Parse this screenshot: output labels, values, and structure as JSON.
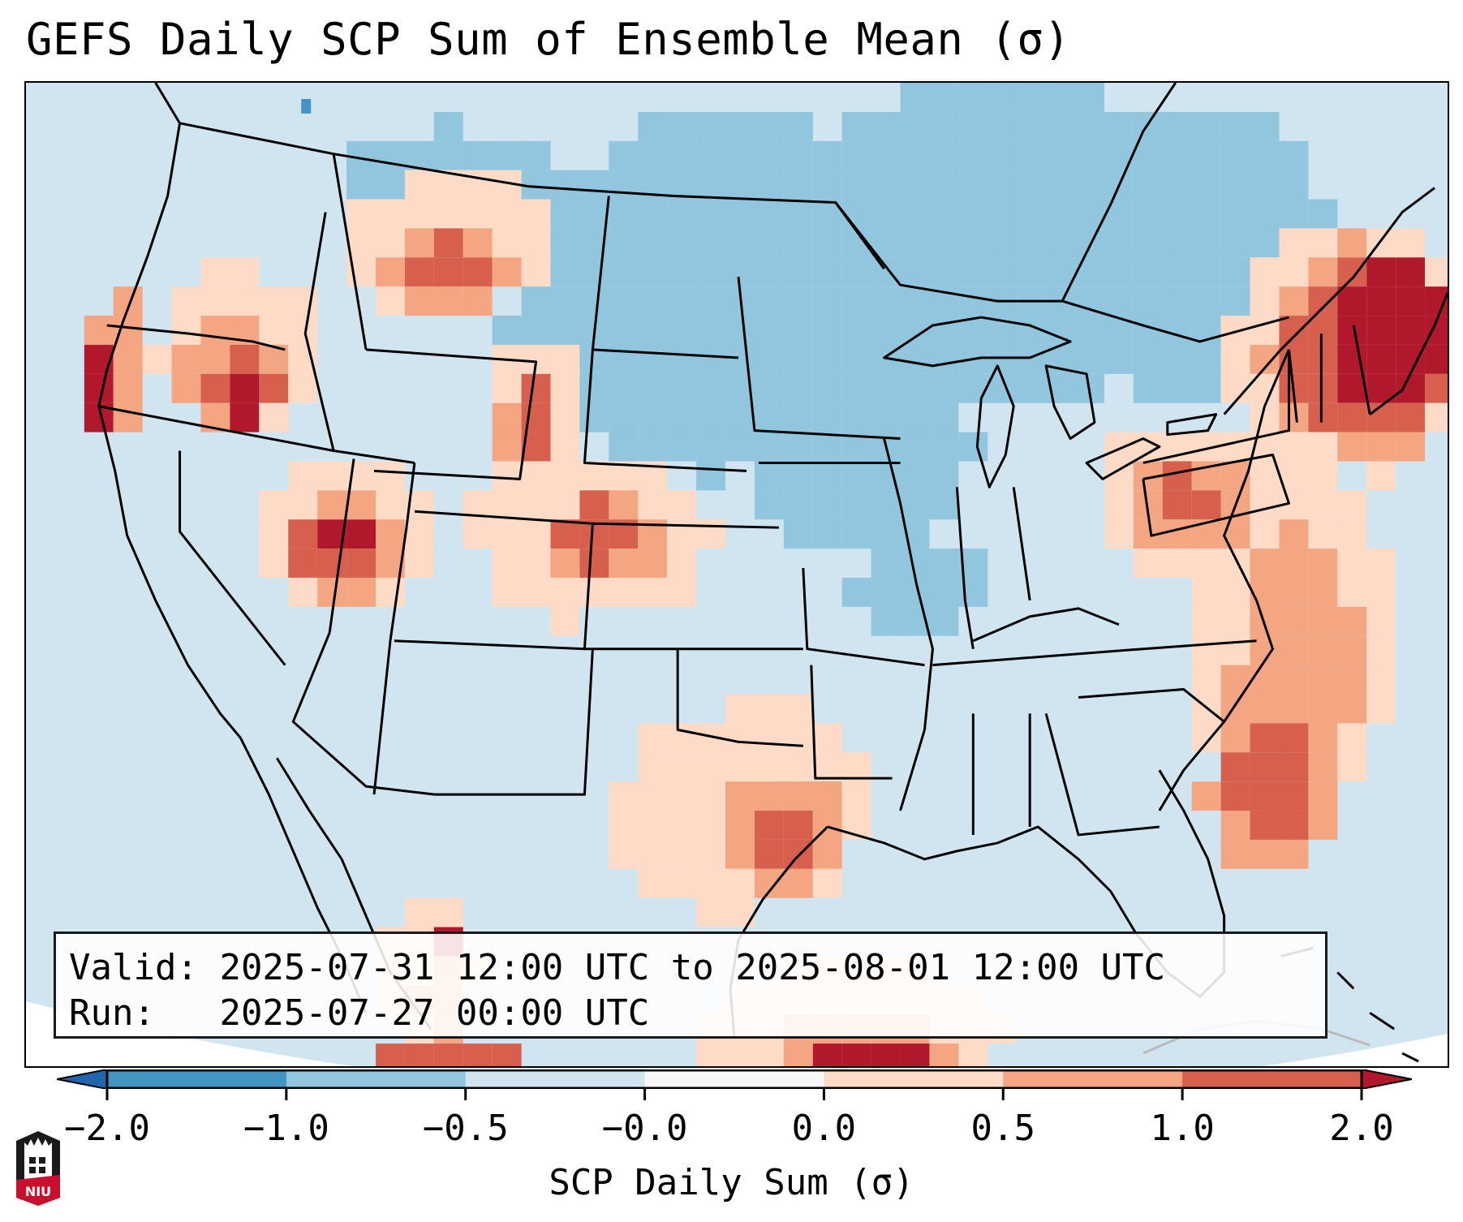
{
  "title": "GEFS Daily SCP Sum of Ensemble Mean (σ)",
  "info": {
    "valid_label": "Valid:",
    "valid_value": "2025-07-31 12:00 UTC to 2025-08-01 12:00 UTC",
    "run_label": "Run:",
    "run_value": "2025-07-27 00:00 UTC"
  },
  "colorbar": {
    "label": "SCP Daily Sum (σ)",
    "ticks": [
      "−2.0",
      "−1.0",
      "−0.5",
      "−0.0",
      "0.0",
      "0.5",
      "1.0",
      "2.0"
    ],
    "bins": [
      {
        "range": "< -2.0",
        "color": "#2166ac"
      },
      {
        "range": "-2.0 to -1.0",
        "color": "#4393c3"
      },
      {
        "range": "-1.0 to -0.5",
        "color": "#92c5de"
      },
      {
        "range": "-0.5 to -0.0",
        "color": "#d1e5f0"
      },
      {
        "range": "-0.0 to 0.0",
        "color": "#f7f7f7"
      },
      {
        "range": "0.0 to 0.5",
        "color": "#fddbc7"
      },
      {
        "range": "0.5 to 1.0",
        "color": "#f4a582"
      },
      {
        "range": "1.0 to 2.0",
        "color": "#d6604d"
      },
      {
        "range": "> 2.0",
        "color": "#b2182b"
      }
    ]
  },
  "logo": {
    "text": "NIU",
    "name": "Northern Illinois University"
  },
  "map_regions": [
    {
      "region": "Northern Plains / Upper Midwest / Great Lakes / Ontario-Quebec",
      "category": "-1.0 to -0.5"
    },
    {
      "region": "Pacific Northwest (OR/WA/ID border)",
      "category": "> 2.0"
    },
    {
      "region": "Northern Rockies (MT/ID)",
      "category": "1.0 to 2.0"
    },
    {
      "region": "Central Wyoming",
      "category": "1.0 to 2.0"
    },
    {
      "region": "Southern Nevada / Utah border",
      "category": "> 2.0"
    },
    {
      "region": "Eastern Colorado / Western Kansas",
      "category": "1.0 to 2.0"
    },
    {
      "region": "Southeast Texas coast",
      "category": "1.0 to 2.0"
    },
    {
      "region": "New England / Gulf of Maine offshore",
      "category": "> 2.0"
    },
    {
      "region": "Mid-Atlantic (PA/MD/VA)",
      "category": "1.0 to 2.0"
    },
    {
      "region": "Offshore Southeast US (Atlantic)",
      "category": "1.0 to 2.0"
    },
    {
      "region": "Southern Mexico / Gulf of Mexico south",
      "category": "> 2.0"
    },
    {
      "region": "Gulf of California region",
      "category": "> 2.0"
    },
    {
      "region": "Remaining CONUS background",
      "category": "-0.5 to -0.0"
    }
  ]
}
